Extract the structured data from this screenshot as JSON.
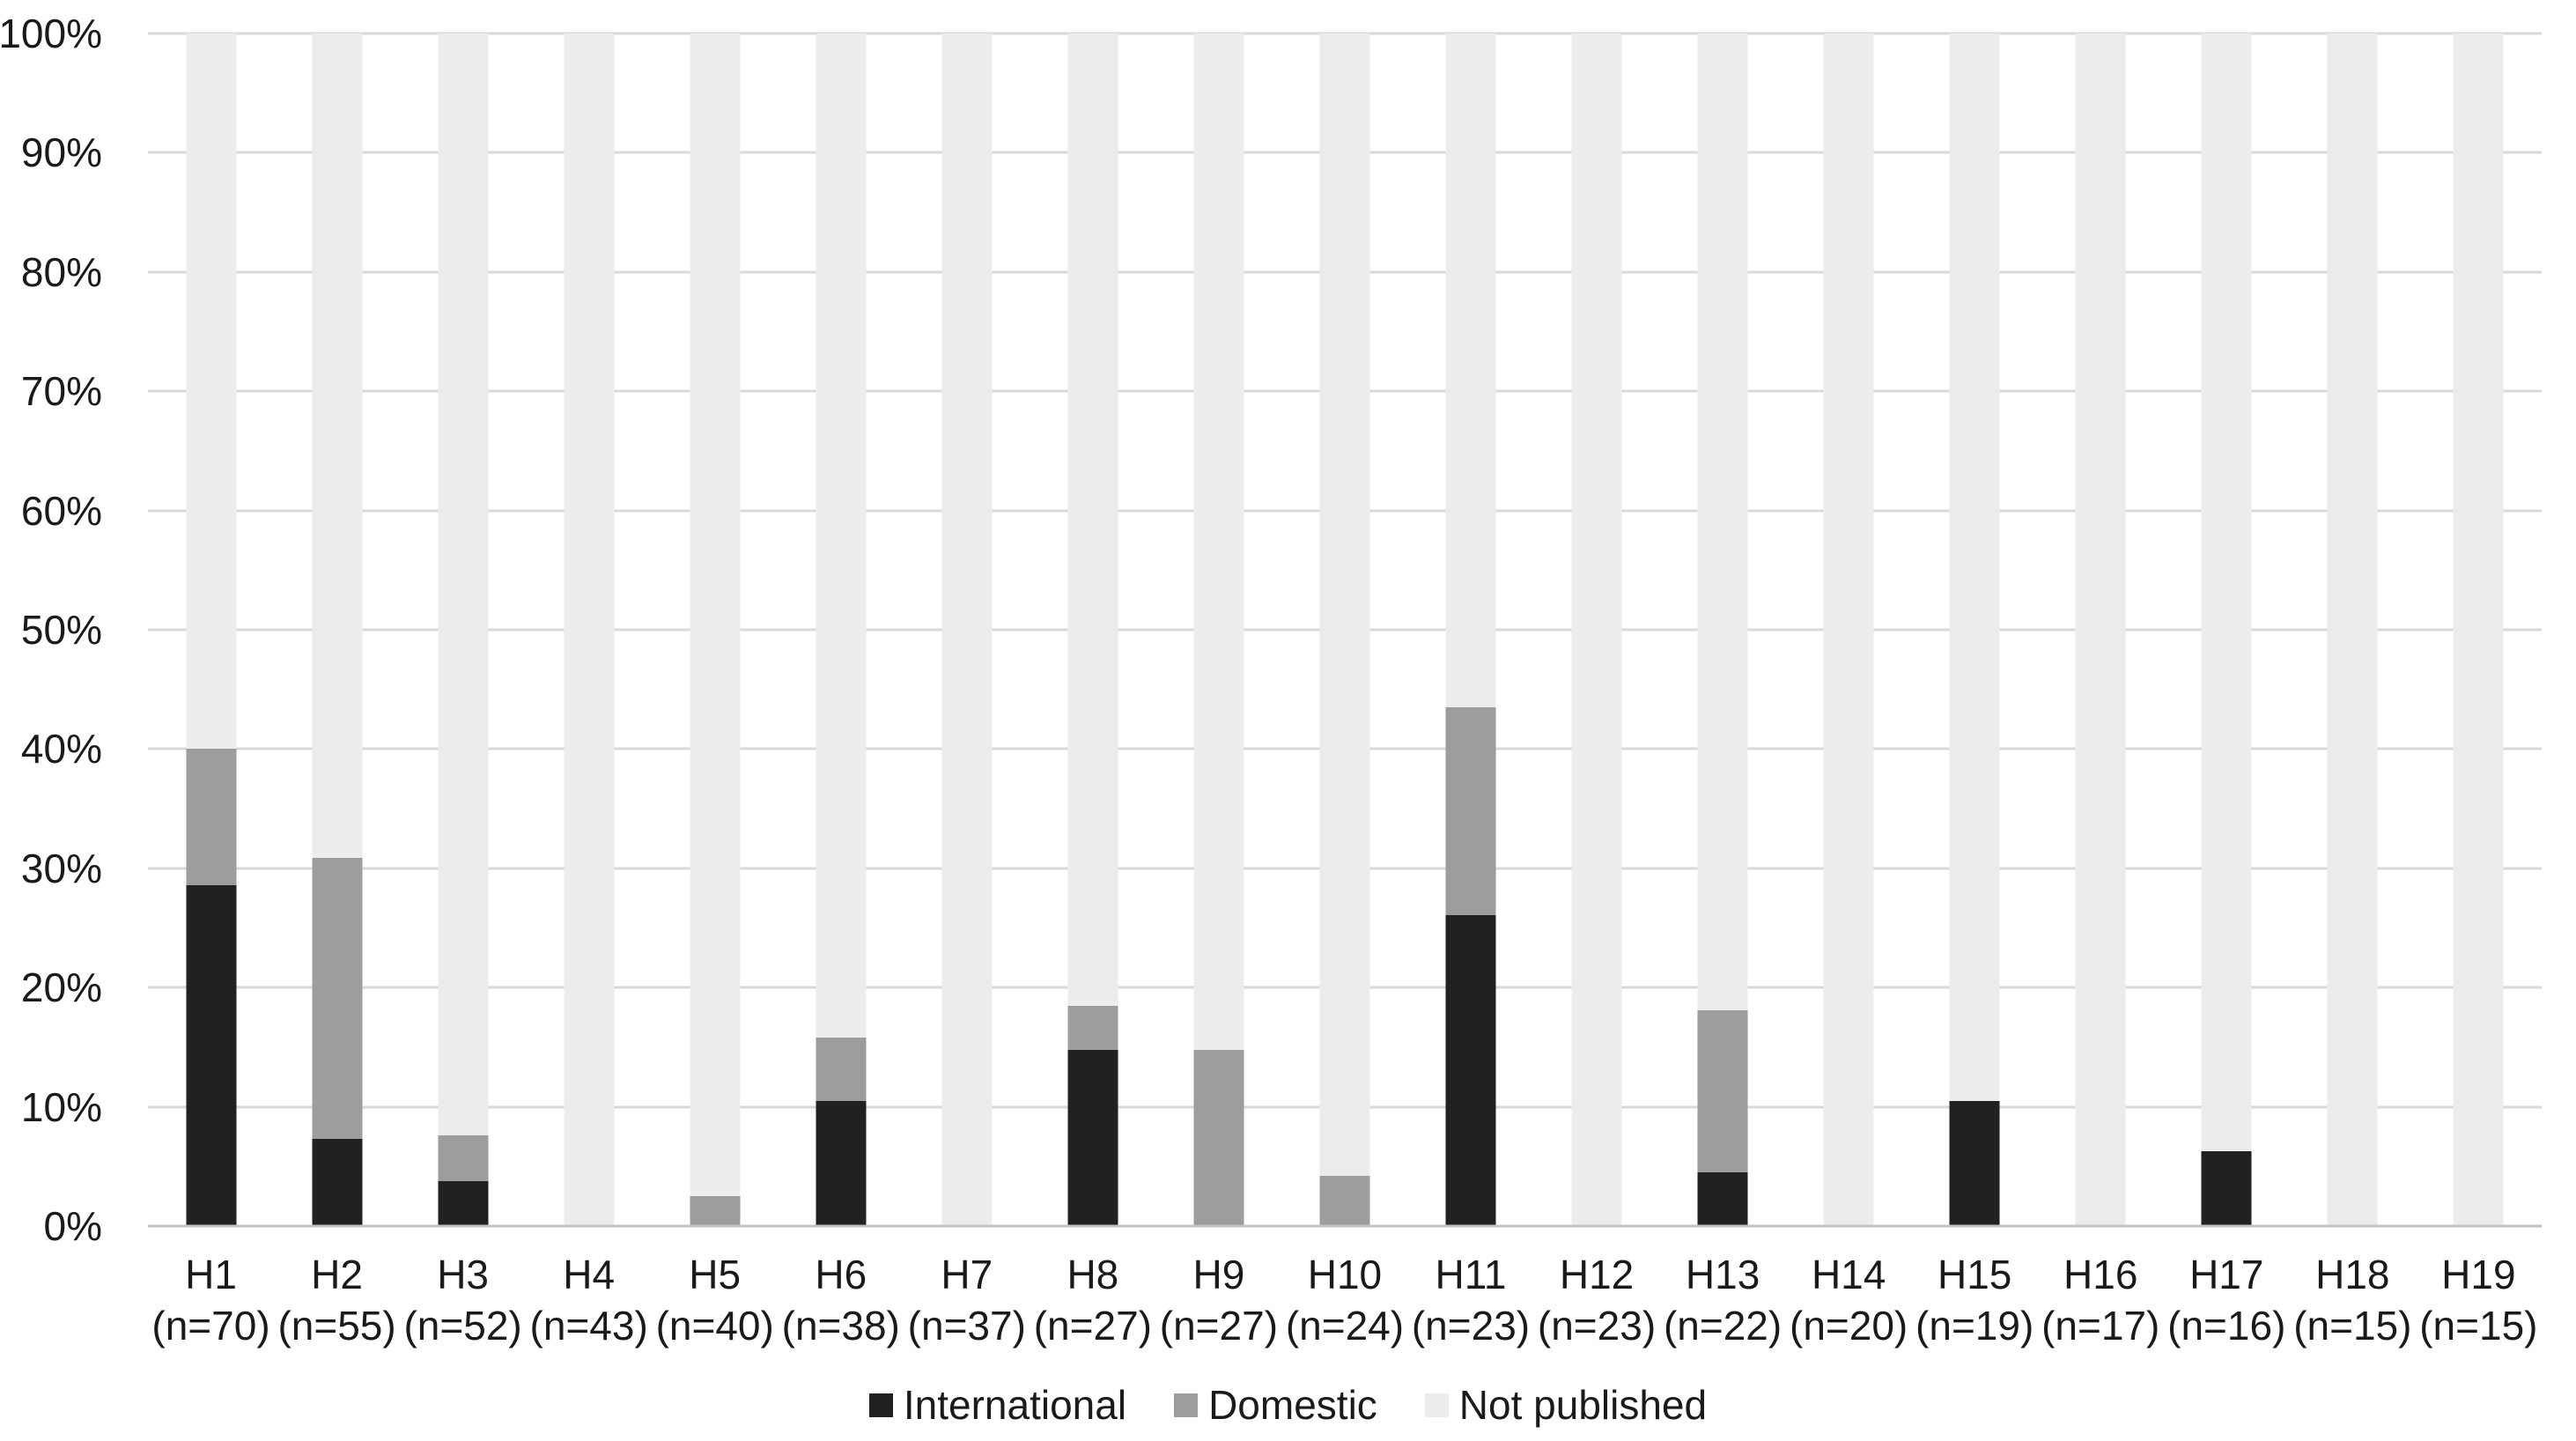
{
  "chart_data": {
    "type": "bar",
    "stacked": true,
    "title": "",
    "xlabel": "",
    "ylabel": "",
    "ylim": [
      0,
      100
    ],
    "grid": "horizontal",
    "legend_position": "bottom",
    "y_ticks": [
      "100%",
      "90%",
      "80%",
      "70%",
      "60%",
      "50%",
      "40%",
      "30%",
      "20%",
      "10%",
      "0%"
    ],
    "categories": [
      "H1",
      "H2",
      "H3",
      "H4",
      "H5",
      "H6",
      "H7",
      "H8",
      "H9",
      "H10",
      "H11",
      "H12",
      "H13",
      "H14",
      "H15",
      "H16",
      "H17",
      "H18",
      "H19"
    ],
    "category_sublabels": [
      "(n=70)",
      "(n=55)",
      "(n=52)",
      "(n=43)",
      "(n=40)",
      "(n=38)",
      "(n=37)",
      "(n=27)",
      "(n=27)",
      "(n=24)",
      "(n=23)",
      "(n=23)",
      "(n=22)",
      "(n=20)",
      "(n=19)",
      "(n=17)",
      "(n=16)",
      "(n=15)",
      "(n=15)"
    ],
    "series": [
      {
        "name": "International",
        "color": "#212121",
        "values": [
          28.6,
          7.3,
          3.8,
          0,
          0,
          10.5,
          0,
          14.8,
          0,
          0,
          26.1,
          0,
          4.5,
          0,
          10.5,
          0,
          6.3,
          0,
          0
        ]
      },
      {
        "name": "Domestic",
        "color": "#9d9d9d",
        "values": [
          11.4,
          23.6,
          3.8,
          0,
          2.5,
          5.3,
          0,
          3.7,
          14.8,
          4.2,
          17.4,
          0,
          13.6,
          0,
          0,
          0,
          0,
          0,
          0
        ]
      },
      {
        "name": "Not published",
        "color": "#ececec",
        "values": [
          60.0,
          69.1,
          92.4,
          100,
          97.5,
          84.2,
          100,
          81.5,
          85.2,
          95.8,
          56.5,
          100,
          81.9,
          100,
          89.5,
          100,
          93.7,
          100,
          100
        ]
      }
    ]
  },
  "colors": {
    "background": "#ffffff",
    "gridline": "#d9d9d9",
    "axis_line": "#c3c3c3",
    "text": "#1a1a1a"
  }
}
